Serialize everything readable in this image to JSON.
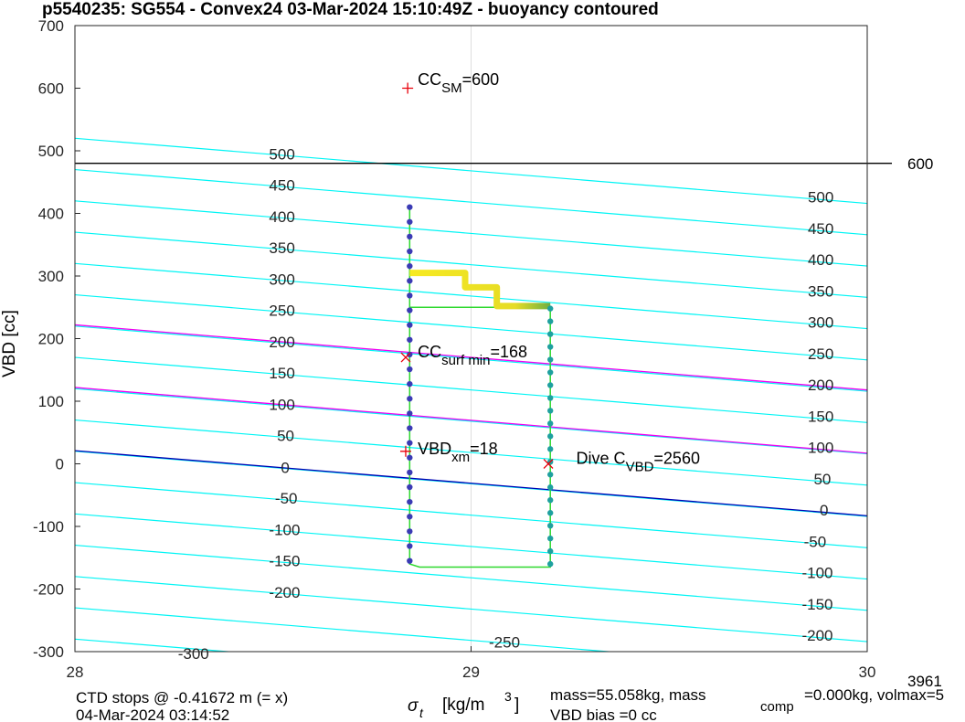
{
  "chart_data": {
    "type": "scatter",
    "title": "p5540235: SG554 - Convex24 03-Mar-2024 15:10:49Z - buoyancy contoured",
    "ylabel": "VBD [cc]",
    "xlabel": {
      "symbol": "σ",
      "sub": "t",
      "unit": "[kg/m",
      "sup": "3",
      "close": "]"
    },
    "xlim": [
      28,
      30
    ],
    "ylim": [
      -300,
      700
    ],
    "x_ticks": [
      {
        "value": 28,
        "label": "28"
      },
      {
        "value": 29,
        "label": "29"
      },
      {
        "value": 30,
        "label": "30"
      }
    ],
    "y_ticks": [
      {
        "value": 700,
        "label": "700"
      },
      {
        "value": 600,
        "label": "600"
      },
      {
        "value": 500,
        "label": "500"
      },
      {
        "value": 400,
        "label": "400"
      },
      {
        "value": 300,
        "label": "300"
      },
      {
        "value": 200,
        "label": "200"
      },
      {
        "value": 100,
        "label": "100"
      },
      {
        "value": 0,
        "label": "0"
      },
      {
        "value": -100,
        "label": "-100"
      },
      {
        "value": -200,
        "label": "-200"
      },
      {
        "value": -300,
        "label": "-300"
      }
    ],
    "grid_x": [
      29
    ],
    "contours": {
      "slope_cc_per_unit": -52,
      "left_y_at_28": [
        520,
        470,
        420,
        370,
        320,
        270,
        220,
        170,
        120,
        70,
        20,
        -30,
        -80,
        -130,
        -180,
        -230,
        -280
      ],
      "left_labels": [
        {
          "text": "500",
          "x": 28.49,
          "y": 495
        },
        {
          "text": "450",
          "x": 28.49,
          "y": 445
        },
        {
          "text": "400",
          "x": 28.49,
          "y": 395
        },
        {
          "text": "350",
          "x": 28.49,
          "y": 345
        },
        {
          "text": "300",
          "x": 28.49,
          "y": 295
        },
        {
          "text": "250",
          "x": 28.49,
          "y": 245
        },
        {
          "text": "200",
          "x": 28.49,
          "y": 195
        },
        {
          "text": "150",
          "x": 28.49,
          "y": 145
        },
        {
          "text": "100",
          "x": 28.49,
          "y": 95
        },
        {
          "text": "50",
          "x": 28.51,
          "y": 45
        },
        {
          "text": "0",
          "x": 28.52,
          "y": -6
        },
        {
          "text": "-50",
          "x": 28.505,
          "y": -55
        },
        {
          "text": "-100",
          "x": 28.49,
          "y": -105
        },
        {
          "text": "-150",
          "x": 28.49,
          "y": -155
        },
        {
          "text": "-200",
          "x": 28.49,
          "y": -205
        },
        {
          "text": "-300",
          "x": 28.26,
          "y": -303
        },
        {
          "text": "-250",
          "x": 29.045,
          "y": -285
        }
      ],
      "right_labels": [
        {
          "text": "500",
          "x": 29.85,
          "y": 426
        },
        {
          "text": "450",
          "x": 29.85,
          "y": 376
        },
        {
          "text": "400",
          "x": 29.85,
          "y": 326
        },
        {
          "text": "350",
          "x": 29.85,
          "y": 276
        },
        {
          "text": "300",
          "x": 29.85,
          "y": 226
        },
        {
          "text": "250",
          "x": 29.85,
          "y": 176
        },
        {
          "text": "200",
          "x": 29.85,
          "y": 126
        },
        {
          "text": "150",
          "x": 29.85,
          "y": 76
        },
        {
          "text": "100",
          "x": 29.85,
          "y": 26
        },
        {
          "text": "50",
          "x": 29.865,
          "y": -24
        },
        {
          "text": "0",
          "x": 29.88,
          "y": -74
        },
        {
          "text": "-50",
          "x": 29.84,
          "y": -124
        },
        {
          "text": "-100",
          "x": 29.835,
          "y": -174
        },
        {
          "text": "-150",
          "x": 29.835,
          "y": -224
        },
        {
          "text": "-200",
          "x": 29.835,
          "y": -274
        }
      ]
    },
    "magenta_lines": [
      [
        28,
        222,
        30,
        118
      ],
      [
        28,
        122,
        30,
        17
      ]
    ],
    "blue_line": [
      28,
      21,
      30,
      -83
    ],
    "black_hline": {
      "y": 480,
      "label": "600"
    },
    "markers": [
      {
        "type": "plus",
        "color": "#e8000b",
        "x": 28.84,
        "y": 600
      },
      {
        "type": "x",
        "color": "#e8000b",
        "x": 28.835,
        "y": 170
      },
      {
        "type": "plus",
        "color": "#e8000b",
        "x": 28.835,
        "y": 20
      },
      {
        "type": "x",
        "color": "#e8000b",
        "x": 29.195,
        "y": 0
      }
    ],
    "annotations": [
      {
        "main": "CC",
        "sub": "SM",
        "rest": "=600",
        "x": 28.9,
        "y": 605
      },
      {
        "main": "CC",
        "sub": "surf min",
        "rest": "=168",
        "x": 28.9,
        "y": 170
      },
      {
        "main": "VBD",
        "sub": "xm",
        "rest": "=18",
        "x": 28.9,
        "y": 15
      },
      {
        "main": "Dive C",
        "sub": "VBD",
        "rest": "=2560",
        "x": 29.3,
        "y": 0
      }
    ],
    "dive_path": {
      "x": [
        28.845,
        28.845,
        28.87,
        29.2,
        29.2,
        28.845
      ],
      "y": [
        412,
        -160,
        -165,
        -165,
        250,
        250
      ]
    },
    "dots_left": {
      "x": 28.845,
      "y_from": 410,
      "y_to": -155,
      "count": 25,
      "color": "#3b3bb5"
    },
    "dots_right": {
      "x": 29.2,
      "y_from": 248,
      "y_to": -160,
      "count": 21,
      "color": "#1fa0a0"
    },
    "bottom_band": {
      "x_from": 28.855,
      "x_to": 29.2,
      "y": -165
    },
    "yellow_steps": [
      {
        "x1": 28.845,
        "x2": 28.985,
        "y": 305
      },
      {
        "x1": 28.985,
        "x2": 29.065,
        "y": 282
      },
      {
        "x1": 29.065,
        "x2": 29.2,
        "y": 252
      }
    ],
    "footer": {
      "line1_left": "CTD stops @ -0.41672 m (= x)",
      "line2_left": "04-Mar-2024 03:14:52",
      "mass_line1": "mass=55.058kg, mass",
      "mass_sub": "comp",
      "mass_rest": "=0.000kg, volmax=5",
      "mass_line2": "VBD bias =0 cc",
      "right_value": "3961"
    },
    "colors": {
      "contour": "#00f5f5",
      "magenta": "#f000f0",
      "blue": "#0000b3",
      "path": "#2ed82e",
      "grid": "#dedede",
      "axis": "#262626"
    }
  }
}
